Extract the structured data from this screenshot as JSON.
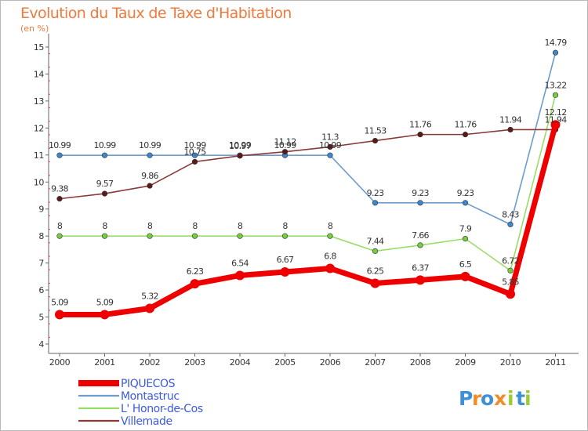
{
  "chart_data": {
    "type": "line",
    "title": "Evolution du Taux de Taxe d'Habitation",
    "subtitle": "(en %)",
    "categories": [
      "2000",
      "2001",
      "2002",
      "2003",
      "2004",
      "2005",
      "2006",
      "2007",
      "2008",
      "2009",
      "2010",
      "2011"
    ],
    "ylim": [
      4,
      15
    ],
    "yticks": [
      4,
      5,
      6,
      7,
      8,
      9,
      10,
      11,
      12,
      13,
      14,
      15
    ],
    "grid": false,
    "legend_position": "bottom-left",
    "series": [
      {
        "name": "PIQUECOS",
        "color": "#ee0000",
        "values": [
          5.09,
          5.09,
          5.32,
          6.23,
          6.54,
          6.67,
          6.8,
          6.25,
          6.37,
          6.5,
          5.85,
          12.12
        ],
        "labels": [
          "5.09",
          "5.09",
          "5.32",
          "6.23",
          "6.54",
          "6.67",
          "6.8",
          "6.25",
          "6.37",
          "6.5",
          "5.85",
          "12.12"
        ]
      },
      {
        "name": "Montastruc",
        "color": "#6d9dca",
        "marker_color": "#3f86cb",
        "values": [
          10.99,
          10.99,
          10.99,
          10.99,
          10.99,
          10.99,
          10.99,
          9.23,
          9.23,
          9.23,
          8.43,
          14.79
        ],
        "labels": [
          "10.99",
          "10.99",
          "10.99",
          "10.99",
          "10.99",
          "10.99",
          "10.99",
          "9.23",
          "9.23",
          "9.23",
          "8.43",
          "14.79"
        ]
      },
      {
        "name": "L' Honor-de-Cos",
        "color": "#99dd66",
        "marker_color": "#77cc44",
        "values": [
          8,
          8,
          8,
          8,
          8,
          8,
          8,
          7.44,
          7.66,
          7.9,
          6.72,
          13.22
        ],
        "labels": [
          "8",
          "8",
          "8",
          "8",
          "8",
          "8",
          "8",
          "7.44",
          "7.66",
          "7.9",
          "6.72",
          "13.22"
        ]
      },
      {
        "name": "Villemade",
        "color": "#8b3a3a",
        "marker_color": "#5a1a1a",
        "values": [
          9.38,
          9.57,
          9.86,
          10.75,
          10.97,
          11.12,
          11.3,
          11.53,
          11.76,
          11.76,
          11.94,
          11.94
        ],
        "labels": [
          "9.38",
          "9.57",
          "9.86",
          "10.75",
          "10.97",
          "11.12",
          "11.3",
          "11.53",
          "11.76",
          "11.76",
          "11.94",
          "11.94"
        ]
      }
    ]
  },
  "logo": {
    "letters": [
      "P",
      "r",
      "o",
      "x",
      "i",
      "t",
      "i"
    ],
    "colors": [
      "#3d8fd6",
      "#f28c28",
      "#3d8fd6",
      "#f28c28",
      "#9acd32",
      "#3d8fd6",
      "#9acd32"
    ]
  }
}
